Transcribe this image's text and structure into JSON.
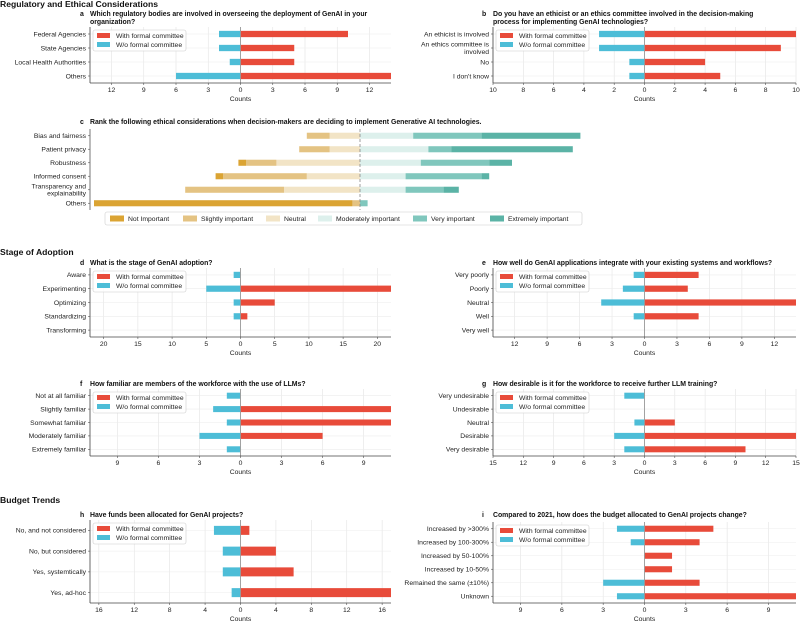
{
  "sections": [
    "Regulatory and Ethical Considerations",
    "Stage of Adoption",
    "Budget Trends"
  ],
  "colors": {
    "with": "#e84b3a",
    "without": "#4dbdd7",
    "likert": [
      "#dba433",
      "#e4c383",
      "#f2e4c6",
      "#ddf0ec",
      "#80c7bd",
      "#5bb3a6"
    ]
  },
  "chart_data": [
    {
      "letter": "a",
      "type": "bar",
      "title": "Which regulatory bodies are involved in overseeing the deployment of GenAI in your\norganization?",
      "categories": [
        "Federal Agencies",
        "State Agencies",
        "Local Health Authorities",
        "Others"
      ],
      "series": [
        {
          "name": "With formal committee",
          "values": [
            10,
            5,
            5,
            14
          ]
        },
        {
          "name": "W/o formal committee",
          "values": [
            2,
            2,
            1,
            6
          ]
        }
      ],
      "xlim": [
        -14,
        14
      ],
      "xticks": [
        -12,
        -9,
        -6,
        -3,
        0,
        3,
        6,
        9,
        12
      ],
      "xtick_labels": [
        "12",
        "9",
        "6",
        "3",
        "0",
        "3",
        "6",
        "9",
        "12"
      ],
      "xlabel": "Counts",
      "legend": "top-left"
    },
    {
      "letter": "b",
      "type": "bar",
      "title": "Do you have an ethicist or an ethics committee involved in the decision-making\nprocess for implementing GenAI technologies?",
      "categories": [
        "An ethicist is involved",
        "An ethics committee is\ninvolved",
        "No",
        "I don't know"
      ],
      "series": [
        {
          "name": "With formal committee",
          "values": [
            10,
            9,
            4,
            5
          ]
        },
        {
          "name": "W/o formal committee",
          "values": [
            3,
            3,
            1,
            1
          ]
        }
      ],
      "xlim": [
        -10,
        10
      ],
      "xticks": [
        -10,
        -8,
        -6,
        -4,
        -2,
        0,
        2,
        4,
        6,
        8,
        10
      ],
      "xtick_labels": [
        "10",
        "8",
        "6",
        "4",
        "2",
        "0",
        "2",
        "4",
        "6",
        "8",
        "10"
      ],
      "xlabel": "Counts",
      "legend": "top-left"
    },
    {
      "letter": "c",
      "type": "bar",
      "title": "Rank the following ethical considerations when decision-makers are deciding to implement Generative AI technologies.",
      "categories": [
        "Bias and fairness",
        "Patient privacy",
        "Robustness",
        "Informed consent",
        "Transparency and\nexplainability",
        "Others"
      ],
      "levels": [
        "Not Important",
        "Slightly important",
        "Neutral",
        "Moderately important",
        "Very important",
        "Extremely important"
      ],
      "values": [
        [
          0,
          3,
          4,
          7,
          9,
          13
        ],
        [
          0,
          4,
          4,
          9,
          3,
          16
        ],
        [
          1,
          4,
          11,
          8,
          9,
          3
        ],
        [
          1,
          11,
          7,
          6,
          10,
          1
        ],
        [
          0,
          13,
          10,
          6,
          5,
          2
        ],
        [
          34,
          1,
          0,
          0,
          1,
          0
        ]
      ],
      "legend": "bottom"
    },
    {
      "letter": "d",
      "type": "bar",
      "title": "What is the stage of GenAI adoption?",
      "categories": [
        "Aware",
        "Experimenting",
        "Optimizing",
        "Standardizing",
        "Transforming"
      ],
      "series": [
        {
          "name": "With formal committee",
          "values": [
            0,
            22,
            5,
            1,
            0
          ]
        },
        {
          "name": "W/o formal committee",
          "values": [
            1,
            5,
            1,
            1,
            0
          ]
        }
      ],
      "xlim": [
        -22,
        22
      ],
      "xticks": [
        -20,
        -15,
        -10,
        -5,
        0,
        5,
        10,
        15,
        20
      ],
      "xtick_labels": [
        "20",
        "15",
        "10",
        "5",
        "0",
        "5",
        "10",
        "15",
        "20"
      ],
      "xlabel": "Counts",
      "legend": "top-left"
    },
    {
      "letter": "e",
      "type": "bar",
      "title": "How well do GenAI applications integrate with your existing systems and workflows?",
      "categories": [
        "Very poorly",
        "Poorly",
        "Neutral",
        "Well",
        "Very well"
      ],
      "series": [
        {
          "name": "With formal committee",
          "values": [
            5,
            4,
            14,
            5,
            0
          ]
        },
        {
          "name": "W/o formal committee",
          "values": [
            1,
            2,
            4,
            1,
            0
          ]
        }
      ],
      "xlim": [
        -14,
        14
      ],
      "xticks": [
        -12,
        -9,
        -6,
        -3,
        0,
        3,
        6,
        9,
        12
      ],
      "xtick_labels": [
        "12",
        "9",
        "6",
        "3",
        "0",
        "3",
        "6",
        "9",
        "12"
      ],
      "xlabel": "Counts",
      "legend": "top-left"
    },
    {
      "letter": "f",
      "type": "bar",
      "title": "How familiar are members of the workforce with the use of LLMs?",
      "categories": [
        "Not at all familiar",
        "Slightly familiar",
        "Somewhat familiar",
        "Moderately familiar",
        "Extremely familiar"
      ],
      "series": [
        {
          "name": "With formal committee",
          "values": [
            0,
            11,
            11,
            6,
            0
          ]
        },
        {
          "name": "W/o formal committee",
          "values": [
            1,
            2,
            1,
            3,
            1
          ]
        }
      ],
      "xlim": [
        -11,
        11
      ],
      "xticks": [
        -9,
        -6,
        -3,
        0,
        3,
        6,
        9
      ],
      "xtick_labels": [
        "9",
        "6",
        "3",
        "0",
        "3",
        "6",
        "9"
      ],
      "xlabel": "Counts",
      "legend": "top-left"
    },
    {
      "letter": "g",
      "type": "bar",
      "title": "How desirable is it for the workforce to receive further LLM training?",
      "categories": [
        "Very undesirable",
        "Undesirable",
        "Neutral",
        "Desirable",
        "Very desirable"
      ],
      "series": [
        {
          "name": "With formal committee",
          "values": [
            0,
            0,
            3,
            15,
            10
          ]
        },
        {
          "name": "W/o formal committee",
          "values": [
            2,
            0,
            1,
            3,
            2
          ]
        }
      ],
      "xlim": [
        -15,
        15
      ],
      "xticks": [
        -15,
        -12,
        -9,
        -6,
        -3,
        0,
        3,
        6,
        9,
        12,
        15
      ],
      "xtick_labels": [
        "15",
        "12",
        "9",
        "6",
        "3",
        "0",
        "3",
        "6",
        "9",
        "12",
        "15"
      ],
      "xlabel": "Counts",
      "legend": "top-left"
    },
    {
      "letter": "h",
      "type": "bar",
      "title": "Have funds been allocated for GenAI projects?",
      "categories": [
        "No, and not considered",
        "No, but considered",
        "Yes, systemtically",
        "Yes, ad-hoc"
      ],
      "series": [
        {
          "name": "With formal committee",
          "values": [
            1,
            4,
            6,
            17
          ]
        },
        {
          "name": "W/o formal committee",
          "values": [
            3,
            2,
            2,
            1
          ]
        }
      ],
      "xlim": [
        -17,
        17
      ],
      "xticks": [
        -16,
        -12,
        -8,
        -4,
        0,
        4,
        8,
        12,
        16
      ],
      "xtick_labels": [
        "16",
        "12",
        "8",
        "4",
        "0",
        "4",
        "8",
        "12",
        "16"
      ],
      "xlabel": "Counts",
      "legend": "top-left"
    },
    {
      "letter": "i",
      "type": "bar",
      "title": "Compared to 2021, how does the budget allocated to GenAI projects change?",
      "categories": [
        "Increased by >300%",
        "Increased by 100-300%",
        "Increased by 50-100%",
        "Increased by 10-50%",
        "Remained the same (±10%)",
        "Unknown"
      ],
      "series": [
        {
          "name": "With formal committee",
          "values": [
            5,
            4,
            2,
            2,
            4,
            11
          ]
        },
        {
          "name": "W/o formal committee",
          "values": [
            2,
            1,
            0,
            0,
            3,
            2
          ]
        }
      ],
      "xlim": [
        -11,
        11
      ],
      "xticks": [
        -9,
        -6,
        -3,
        0,
        3,
        6,
        9
      ],
      "xtick_labels": [
        "9",
        "6",
        "3",
        "0",
        "3",
        "6",
        "9"
      ],
      "xlabel": "Counts",
      "legend": "top-left"
    }
  ]
}
